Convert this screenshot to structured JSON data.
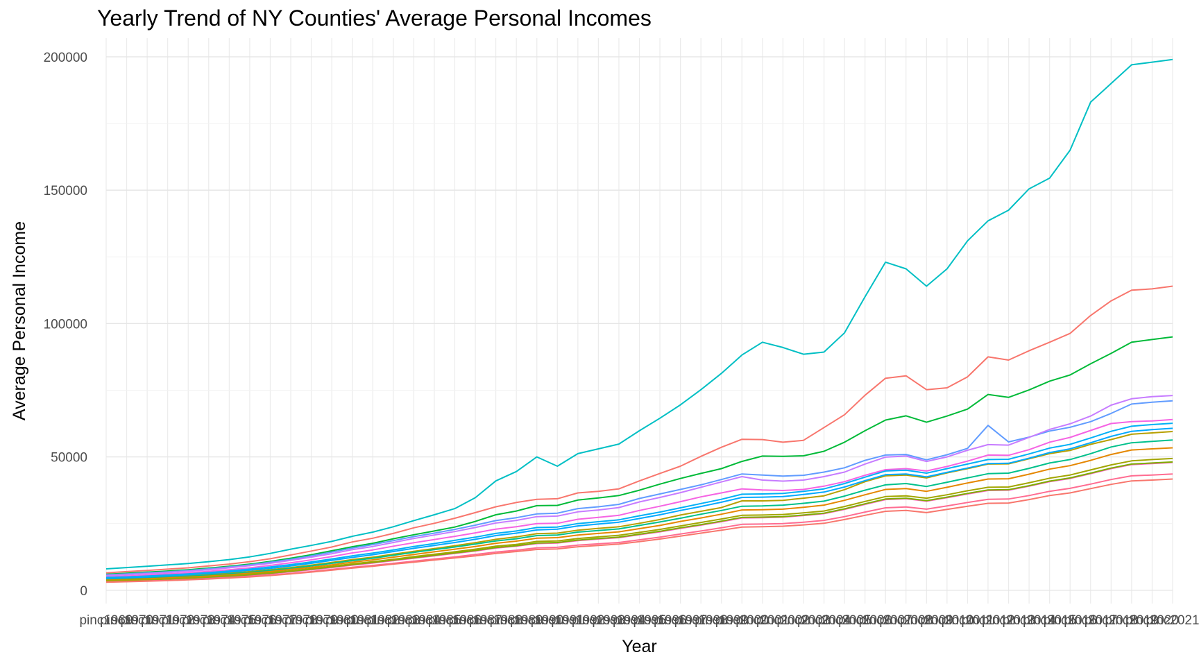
{
  "chart_data": {
    "type": "line",
    "title": "Yearly Trend of NY Counties' Average Personal Incomes",
    "xlabel": "Year",
    "ylabel": "Average Personal Income",
    "x": [
      "pinc1969",
      "pinc1970",
      "pinc1971",
      "pinc1972",
      "pinc1973",
      "pinc1974",
      "pinc1975",
      "pinc1976",
      "pinc1977",
      "pinc1978",
      "pinc1979",
      "pinc1980",
      "pinc1981",
      "pinc1982",
      "pinc1983",
      "pinc1984",
      "pinc1985",
      "pinc1986",
      "pinc1987",
      "pinc1988",
      "pinc1989",
      "pinc1990",
      "pinc1991",
      "pinc1992",
      "pinc1993",
      "pinc1994",
      "pinc1995",
      "pinc1996",
      "pinc1997",
      "pinc1998",
      "pinc1999",
      "pinc2000",
      "pinc2001",
      "pinc2002",
      "pinc2003",
      "pinc2004",
      "pinc2005",
      "pinc2006",
      "pinc2007",
      "pinc2008",
      "pinc2009",
      "pinc2010",
      "pinc2011",
      "pinc2012",
      "pinc2013",
      "pinc2014",
      "pinc2015",
      "pinc2016",
      "pinc2017",
      "pinc2018",
      "pinc2019",
      "pinc2020",
      "pinc2021"
    ],
    "ylim": [
      -5000,
      207000
    ],
    "y_ticks": [
      0,
      50000,
      100000,
      150000,
      200000
    ],
    "grid": true,
    "legend": "none",
    "series": [
      {
        "color": "#00BFC4",
        "values": [
          8000,
          8500,
          9000,
          9500,
          10000,
          10700,
          11500,
          12500,
          13800,
          15400,
          16800,
          18300,
          20200,
          21800,
          23800,
          26100,
          28300,
          30600,
          34700,
          41000,
          44500,
          50000,
          46500,
          51200,
          53000,
          54800,
          59800,
          64500,
          69500,
          75200,
          81300,
          88200,
          93000,
          91000,
          88500,
          89300,
          96500,
          110000,
          123000,
          120500,
          114000,
          120500,
          131000,
          138500,
          142500,
          150500,
          154500,
          165000,
          183000,
          190000,
          197000,
          198000,
          199000
        ]
      },
      {
        "color": "#F8766D",
        "values": [
          6500,
          7000,
          7400,
          7900,
          8400,
          9100,
          9800,
          10700,
          11800,
          13200,
          14700,
          16200,
          18100,
          19500,
          21300,
          23400,
          25100,
          27000,
          29100,
          31300,
          32900,
          34100,
          34300,
          36500,
          37100,
          38000,
          41000,
          43800,
          46500,
          50200,
          53600,
          56600,
          56500,
          55500,
          56200,
          61000,
          65800,
          73100,
          79500,
          80400,
          75200,
          75900,
          80000,
          87500,
          86300,
          89800,
          93000,
          96300,
          103000,
          108500,
          112500,
          113000,
          114000
        ]
      },
      {
        "color": "#00BA38",
        "values": [
          6000,
          6400,
          6800,
          7200,
          7700,
          8300,
          9000,
          9800,
          10800,
          12000,
          13300,
          14800,
          16300,
          17600,
          19300,
          20800,
          22200,
          23700,
          25800,
          28300,
          29700,
          31700,
          31800,
          33800,
          34600,
          35500,
          37500,
          39800,
          41900,
          43800,
          45600,
          48300,
          50300,
          50200,
          50400,
          52100,
          55500,
          59800,
          63800,
          65400,
          63000,
          65300,
          67900,
          73400,
          72300,
          75100,
          78400,
          80700,
          84900,
          88800,
          93000,
          94000,
          95000
        ]
      },
      {
        "color": "#619CFF",
        "values": [
          5800,
          6100,
          6500,
          6900,
          7400,
          8000,
          8700,
          9500,
          10500,
          11600,
          12900,
          14300,
          15800,
          17100,
          18600,
          20100,
          21400,
          22800,
          24400,
          26100,
          27200,
          28600,
          28900,
          30600,
          31300,
          32200,
          34400,
          36100,
          37800,
          39500,
          41500,
          43600,
          43200,
          42800,
          43100,
          44300,
          45900,
          48700,
          50700,
          50900,
          48900,
          50800,
          53200,
          61800,
          55600,
          57400,
          59700,
          61100,
          63200,
          66300,
          69800,
          70500,
          71000
        ]
      },
      {
        "color": "#C77CFF",
        "values": [
          5500,
          5800,
          6200,
          6600,
          7100,
          7700,
          8400,
          9200,
          10100,
          11200,
          12400,
          13700,
          15200,
          16400,
          17900,
          19400,
          20700,
          22000,
          23500,
          25200,
          26200,
          27600,
          27800,
          29400,
          30100,
          31000,
          33100,
          34800,
          36600,
          38600,
          40600,
          42600,
          41300,
          40900,
          41300,
          42600,
          44300,
          47300,
          49900,
          50300,
          48300,
          50000,
          52500,
          54600,
          54400,
          57300,
          60300,
          62400,
          65300,
          69400,
          71800,
          72600,
          73000
        ]
      },
      {
        "color": "#F564E3",
        "values": [
          5000,
          5300,
          5700,
          6100,
          6500,
          7100,
          7700,
          8400,
          9300,
          10300,
          11400,
          12600,
          14000,
          15100,
          16500,
          17800,
          19000,
          20200,
          21500,
          22900,
          23800,
          25000,
          25100,
          26600,
          27300,
          28100,
          29900,
          31500,
          33200,
          35000,
          36500,
          38000,
          37600,
          37400,
          37800,
          39000,
          40700,
          43100,
          45200,
          45600,
          44700,
          46400,
          48400,
          50700,
          50600,
          52700,
          55500,
          57300,
          59900,
          62500,
          63200,
          63500,
          64000
        ]
      },
      {
        "color": "#B79F00",
        "values": [
          4200,
          4400,
          4700,
          5000,
          5400,
          5900,
          6400,
          7000,
          7700,
          8500,
          9400,
          10400,
          11500,
          12400,
          13500,
          14600,
          15600,
          16700,
          17800,
          19100,
          20000,
          21200,
          21400,
          22500,
          23200,
          23800,
          25100,
          26500,
          28200,
          29600,
          31000,
          33500,
          33500,
          33700,
          34500,
          35400,
          37700,
          40700,
          42900,
          43200,
          42100,
          44000,
          45600,
          47300,
          47400,
          49300,
          51200,
          52400,
          54700,
          56500,
          58500,
          59000,
          59500
        ]
      },
      {
        "color": "#00C08B",
        "values": [
          4000,
          4200,
          4500,
          4800,
          5200,
          5600,
          6100,
          6700,
          7400,
          8200,
          9100,
          10100,
          11100,
          12000,
          13100,
          14200,
          15200,
          16200,
          17300,
          18500,
          19300,
          20500,
          20700,
          21800,
          22400,
          23000,
          24300,
          25600,
          27000,
          28500,
          29900,
          31500,
          31600,
          31900,
          32600,
          33400,
          35300,
          37500,
          39500,
          40000,
          38900,
          40500,
          42100,
          43700,
          43900,
          45700,
          47700,
          49000,
          51200,
          53700,
          55300,
          55800,
          56300
        ]
      },
      {
        "color": "#E58700",
        "values": [
          3800,
          4000,
          4300,
          4600,
          4900,
          5300,
          5800,
          6400,
          7000,
          7800,
          8600,
          9500,
          10500,
          11400,
          12400,
          13400,
          14400,
          15400,
          16400,
          17600,
          18400,
          19500,
          19700,
          20700,
          21300,
          21900,
          23100,
          24300,
          25800,
          27100,
          28500,
          30100,
          30200,
          30400,
          31100,
          31900,
          33700,
          35800,
          37800,
          38100,
          37100,
          38600,
          40200,
          41700,
          41800,
          43500,
          45400,
          46700,
          48700,
          50900,
          52600,
          53000,
          53400
        ]
      },
      {
        "color": "#00A9FF",
        "values": [
          4500,
          4700,
          5000,
          5400,
          5800,
          6300,
          6800,
          7500,
          8200,
          9100,
          10100,
          11200,
          12300,
          13300,
          14500,
          15700,
          16800,
          17900,
          19100,
          20500,
          21400,
          22600,
          22900,
          24100,
          24800,
          25500,
          26900,
          28300,
          29900,
          31400,
          33000,
          34800,
          34900,
          35100,
          35900,
          36800,
          38700,
          41100,
          43300,
          43600,
          42500,
          44200,
          45800,
          47500,
          47600,
          49500,
          51600,
          53000,
          55300,
          57700,
          59600,
          60200,
          60700
        ]
      },
      {
        "color": "#FF61C3",
        "values": [
          3300,
          3500,
          3700,
          4000,
          4300,
          4700,
          5100,
          5600,
          6200,
          6900,
          7700,
          8500,
          9400,
          10200,
          11100,
          12000,
          12900,
          13800,
          14700,
          15800,
          16500,
          17500,
          17700,
          18600,
          19200,
          19700,
          20800,
          21900,
          23200,
          24400,
          25700,
          27100,
          27200,
          27400,
          28000,
          28700,
          30300,
          32200,
          34000,
          34300,
          33400,
          34700,
          36100,
          37400,
          37500,
          39000,
          40700,
          41900,
          43700,
          45600,
          47100,
          47500,
          47900
        ]
      },
      {
        "color": "#7CAE00",
        "values": [
          3500,
          3700,
          3900,
          4200,
          4500,
          4900,
          5300,
          5800,
          6400,
          7100,
          7900,
          8700,
          9600,
          10400,
          11300,
          12200,
          13100,
          14000,
          14900,
          16000,
          16700,
          17700,
          17900,
          18800,
          19400,
          19900,
          21000,
          22100,
          23400,
          24600,
          25900,
          27300,
          27400,
          27600,
          28200,
          28900,
          30500,
          32400,
          34200,
          34500,
          33600,
          34900,
          36300,
          37600,
          37700,
          39200,
          40900,
          42100,
          43900,
          45800,
          47300,
          47700,
          48100
        ]
      },
      {
        "color": "#FF6C91",
        "values": [
          3100,
          3300,
          3500,
          3700,
          4000,
          4300,
          4700,
          5200,
          5700,
          6300,
          7000,
          7800,
          8600,
          9300,
          10100,
          10900,
          11700,
          12500,
          13400,
          14300,
          15000,
          15900,
          16100,
          16900,
          17400,
          17900,
          18900,
          19900,
          21100,
          22200,
          23400,
          24700,
          24800,
          25000,
          25500,
          26200,
          27600,
          29300,
          30900,
          31200,
          30400,
          31600,
          32900,
          34100,
          34200,
          35500,
          37100,
          38200,
          39800,
          41500,
          42900,
          43200,
          43600
        ]
      },
      {
        "color": "#F8766D",
        "values": [
          3000,
          3200,
          3400,
          3600,
          3900,
          4200,
          4600,
          5000,
          5500,
          6100,
          6800,
          7500,
          8300,
          9000,
          9800,
          10500,
          11300,
          12100,
          12900,
          13800,
          14500,
          15300,
          15500,
          16300,
          16800,
          17300,
          18200,
          19200,
          20300,
          21400,
          22500,
          23700,
          23800,
          24000,
          24500,
          25100,
          26500,
          28100,
          29600,
          29900,
          29100,
          30300,
          31500,
          32600,
          32700,
          34000,
          35500,
          36500,
          38100,
          39700,
          41000,
          41300,
          41700
        ]
      },
      {
        "color": "#00B0F6",
        "values": [
          4800,
          5000,
          5300,
          5700,
          6100,
          6600,
          7200,
          7900,
          8700,
          9600,
          10600,
          11700,
          12900,
          13900,
          15100,
          16400,
          17500,
          18700,
          19900,
          21300,
          22200,
          23500,
          23700,
          25000,
          25700,
          26400,
          27900,
          29300,
          30900,
          32500,
          34100,
          36000,
          36100,
          36300,
          37100,
          38000,
          40000,
          42400,
          44700,
          45000,
          43900,
          45600,
          47300,
          49000,
          49100,
          51100,
          53300,
          54700,
          57100,
          59600,
          61500,
          62100,
          62600
        ]
      },
      {
        "color": "#A3A500",
        "values": [
          3600,
          3800,
          4000,
          4300,
          4600,
          5000,
          5500,
          6000,
          6600,
          7300,
          8100,
          9000,
          9900,
          10700,
          11600,
          12600,
          13500,
          14400,
          15400,
          16500,
          17200,
          18300,
          18500,
          19400,
          20000,
          20600,
          21700,
          22800,
          24100,
          25400,
          26700,
          28100,
          28200,
          28400,
          29000,
          29700,
          31400,
          33300,
          35100,
          35400,
          34500,
          35800,
          37300,
          38600,
          38700,
          40300,
          42000,
          43200,
          45100,
          47000,
          48500,
          49000,
          49400
        ]
      }
    ]
  }
}
